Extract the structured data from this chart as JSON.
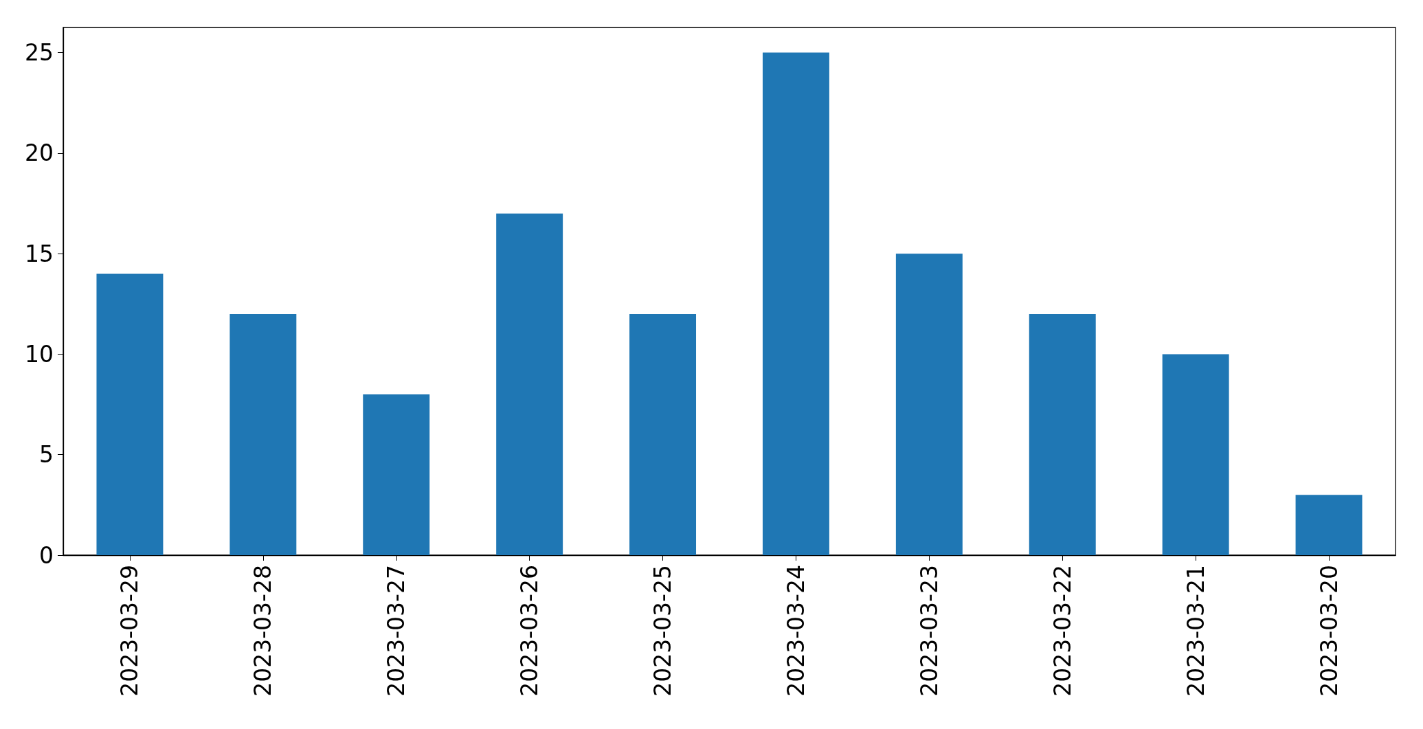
{
  "chart_data": {
    "type": "bar",
    "categories": [
      "2023-03-29",
      "2023-03-28",
      "2023-03-27",
      "2023-03-26",
      "2023-03-25",
      "2023-03-24",
      "2023-03-23",
      "2023-03-22",
      "2023-03-21",
      "2023-03-20"
    ],
    "values": [
      14,
      12,
      8,
      17,
      12,
      25,
      15,
      12,
      10,
      3
    ],
    "color": "#1f77b4",
    "ylim": [
      0,
      26.25
    ],
    "yticks": [
      0,
      5,
      10,
      15,
      20,
      25
    ],
    "grid": false
  }
}
